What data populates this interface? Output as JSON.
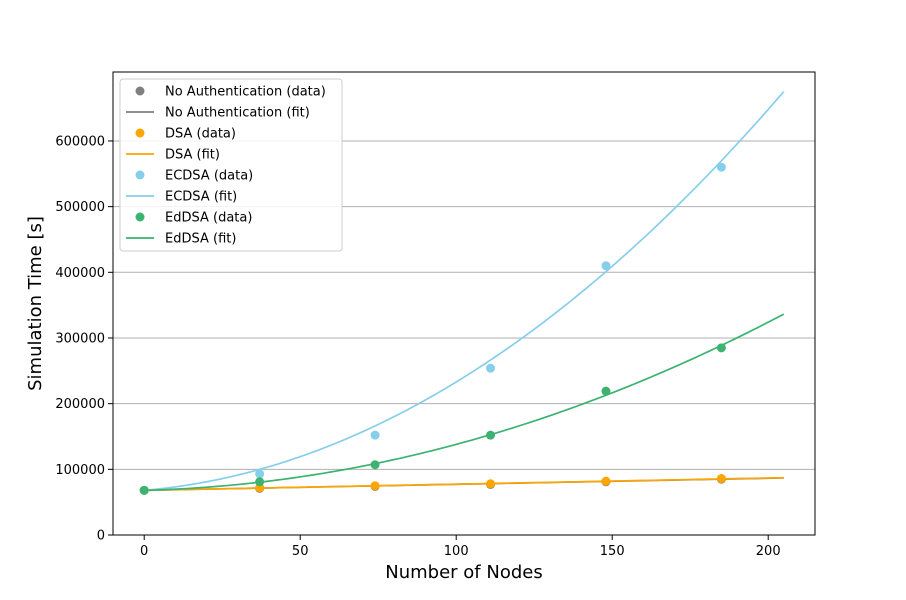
{
  "chart_data": {
    "type": "scatter",
    "title": "",
    "xlabel": "Number of Nodes",
    "ylabel": "Simulation Time [s]",
    "xlim": [
      -10,
      215
    ],
    "ylim": [
      0,
      705000
    ],
    "xticks": [
      0,
      50,
      100,
      150,
      200
    ],
    "yticks": [
      0,
      100000,
      200000,
      300000,
      400000,
      500000,
      600000
    ],
    "grid": "horizontal",
    "legend": "upper-left",
    "series": [
      {
        "name": "No Authentication (data)",
        "kind": "points",
        "color": "#808080",
        "x": [
          0,
          37,
          74,
          111,
          148,
          185
        ],
        "y": [
          68000,
          71000,
          74000,
          77000,
          81000,
          85000
        ]
      },
      {
        "name": "No Authentication (fit)",
        "kind": "line",
        "color": "#808080",
        "fit": {
          "a": 0,
          "b": 92,
          "c": 68000
        },
        "x_range": [
          0,
          205
        ]
      },
      {
        "name": "DSA (data)",
        "kind": "points",
        "color": "#FFA500",
        "x": [
          0,
          37,
          74,
          111,
          148,
          185
        ],
        "y": [
          68000,
          72000,
          75000,
          78000,
          82000,
          86000
        ]
      },
      {
        "name": "DSA (fit)",
        "kind": "line",
        "color": "#FFA500",
        "fit": {
          "a": 0,
          "b": 94,
          "c": 68000
        },
        "x_range": [
          0,
          205
        ]
      },
      {
        "name": "ECDSA (data)",
        "kind": "points",
        "color": "#87CEEB",
        "x": [
          0,
          37,
          74,
          111,
          148,
          185
        ],
        "y": [
          68000,
          93000,
          152000,
          254000,
          410000,
          560000
        ]
      },
      {
        "name": "ECDSA (fit)",
        "kind": "line",
        "color": "#87CEEB",
        "fit": {
          "a": 12.5,
          "b": 400,
          "c": 68000
        },
        "x_range": [
          0,
          205
        ]
      },
      {
        "name": "EdDSA (data)",
        "kind": "points",
        "color": "#3CB371",
        "x": [
          0,
          37,
          74,
          111,
          148,
          185
        ],
        "y": [
          68000,
          81000,
          107000,
          152000,
          219000,
          285000
        ]
      },
      {
        "name": "EdDSA (fit)",
        "kind": "line",
        "color": "#3CB371",
        "fit": {
          "a": 5.8,
          "b": 120,
          "c": 68000
        },
        "x_range": [
          0,
          205
        ]
      }
    ]
  }
}
